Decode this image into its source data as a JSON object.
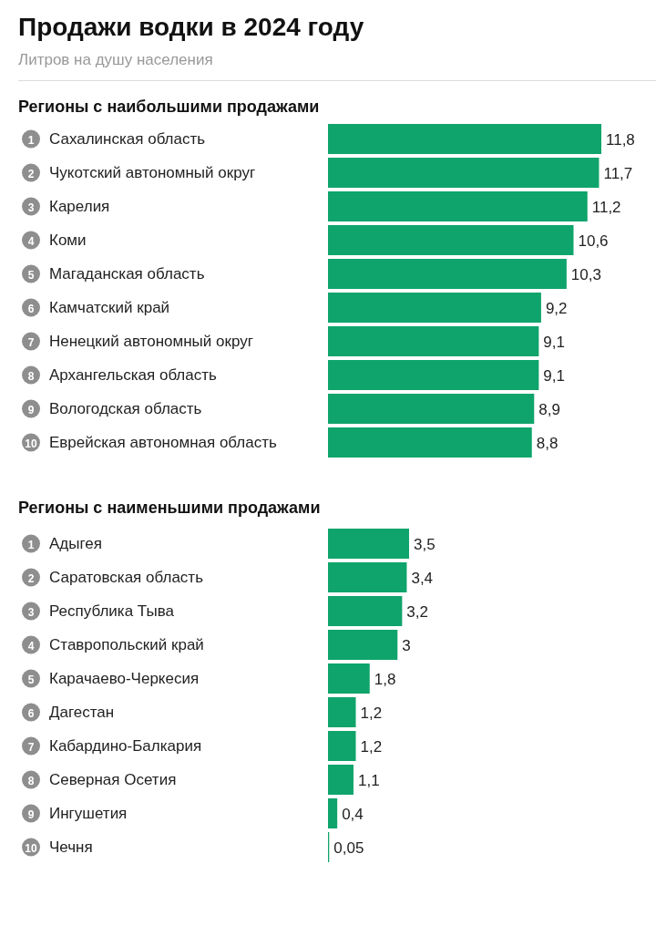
{
  "chart_data": {
    "type": "bar",
    "title": "Продажи водки в 2024 году",
    "subtitle": "Литров на душу населения",
    "annotations": [
      "Регионы с наибольшими продажами",
      "Регионы с наименьшими продажами"
    ],
    "orientation": "horizontal",
    "categories": [
      "1 Сахалинская область",
      "2 Чукотский автономный округ",
      "3 Карелия",
      "4 Коми",
      "5 Магаданская область",
      "6 Камчатский край",
      "7 Ненецкий автономный округ",
      "8 Архангельская область",
      "9 Вологодская область",
      "10 Еврейская автономная область",
      null,
      null,
      "1 Адыгея",
      "2 Саратовская область",
      "3 Республика Тыва",
      "4 Ставропольский край",
      "5 Карачаево-Черкесия",
      "6 Дагестан",
      "7 Кабардино-Балкария",
      "8 Северная Осетия",
      "9 Ингушетия",
      "10 Чечня"
    ],
    "values": [
      11.8,
      11.7,
      11.2,
      10.6,
      10.3,
      9.2,
      9.1,
      9.1,
      8.9,
      8.8,
      null,
      null,
      3.5,
      3.4,
      3.2,
      3,
      1.8,
      1.2,
      1.2,
      1.1,
      0.4,
      0.05
    ],
    "value_labels": [
      "11,8",
      "11,7",
      "11,2",
      "10,6",
      "10,3",
      "9,2",
      "9,1",
      "9,1",
      "8,9",
      "8,8",
      null,
      null,
      "3,5",
      "3,4",
      "3,2",
      "3",
      "1,8",
      "1,2",
      "1,2",
      "1,1",
      "0,4",
      "0,05"
    ],
    "color": "#0fa46b",
    "xlim": [
      0,
      11.8
    ],
    "tick_labels": "y"
  }
}
